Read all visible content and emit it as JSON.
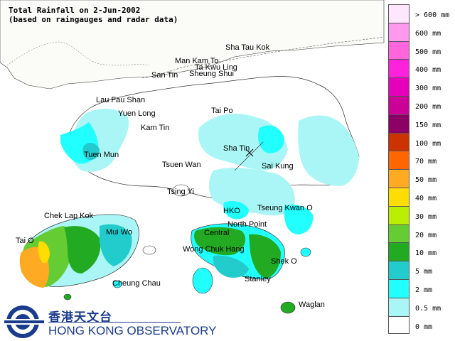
{
  "title": {
    "line1": "Total Rainfall on 2-Jun-2002",
    "line2": "(based on raingauges and radar data)"
  },
  "places": {
    "sha_tau_kok": "Sha Tau Kok",
    "man_kam_to": "Man Kam To",
    "ta_kwu_ling": "Ta Kwu Ling",
    "san_tin": "San Tin",
    "sheung_shui": "Sheung Shui",
    "lau_fau_shan": "Lau Fau Shan",
    "yuen_long": "Yuen Long",
    "kam_tin": "Kam Tin",
    "tai_po": "Tai Po",
    "sha_tin": "Sha Tin",
    "tuen_mun": "Tuen Mun",
    "tsuen_wan": "Tsuen Wan",
    "sai_kung": "Sai Kung",
    "tsing_yi": "Tsing Yi",
    "chek_lap_kok": "Chek Lap Kok",
    "hko": "HKO",
    "tseung_kwan_o": "Tseung Kwan O",
    "mui_wo": "Mui Wo",
    "north_point": "North Point",
    "tai_o": "Tai O",
    "central": "Central",
    "wong_chuk_hang": "Wong Chuk Hang",
    "shek_o": "Shek O",
    "cheung_chau": "Cheung Chau",
    "stanley": "Stanley",
    "waglan": "Waglan"
  },
  "legend": [
    {
      "label": "> 600 mm",
      "color": "#ffe6ff"
    },
    {
      "label": "600 mm",
      "color": "#ff99ee"
    },
    {
      "label": "500 mm",
      "color": "#ff66dd"
    },
    {
      "label": "400 mm",
      "color": "#ff22dd"
    },
    {
      "label": "300 mm",
      "color": "#e600bb"
    },
    {
      "label": "200 mm",
      "color": "#cc0099"
    },
    {
      "label": "150 mm",
      "color": "#8c0066"
    },
    {
      "label": "100 mm",
      "color": "#cc3300"
    },
    {
      "label": "70 mm",
      "color": "#ff6600"
    },
    {
      "label": "50 mm",
      "color": "#ffaa22"
    },
    {
      "label": "40 mm",
      "color": "#ffdd00"
    },
    {
      "label": "30 mm",
      "color": "#bbee00"
    },
    {
      "label": "20 mm",
      "color": "#66cc33"
    },
    {
      "label": "10 mm",
      "color": "#22aa22"
    },
    {
      "label": "5 mm",
      "color": "#22cccc"
    },
    {
      "label": "2 mm",
      "color": "#22ffff"
    },
    {
      "label": "0.5 mm",
      "color": "#aaf5f5"
    },
    {
      "label": "0 mm",
      "color": "#ffffff"
    }
  ],
  "logo": {
    "chinese": "香港天文台",
    "english": "HONG KONG OBSERVATORY",
    "colors": {
      "brand": "#1b3c8c"
    }
  },
  "colors": {
    "land": "#ffffff",
    "sea": "#ffffff",
    "mainland": "#fafaf5",
    "coast": "#333333"
  }
}
